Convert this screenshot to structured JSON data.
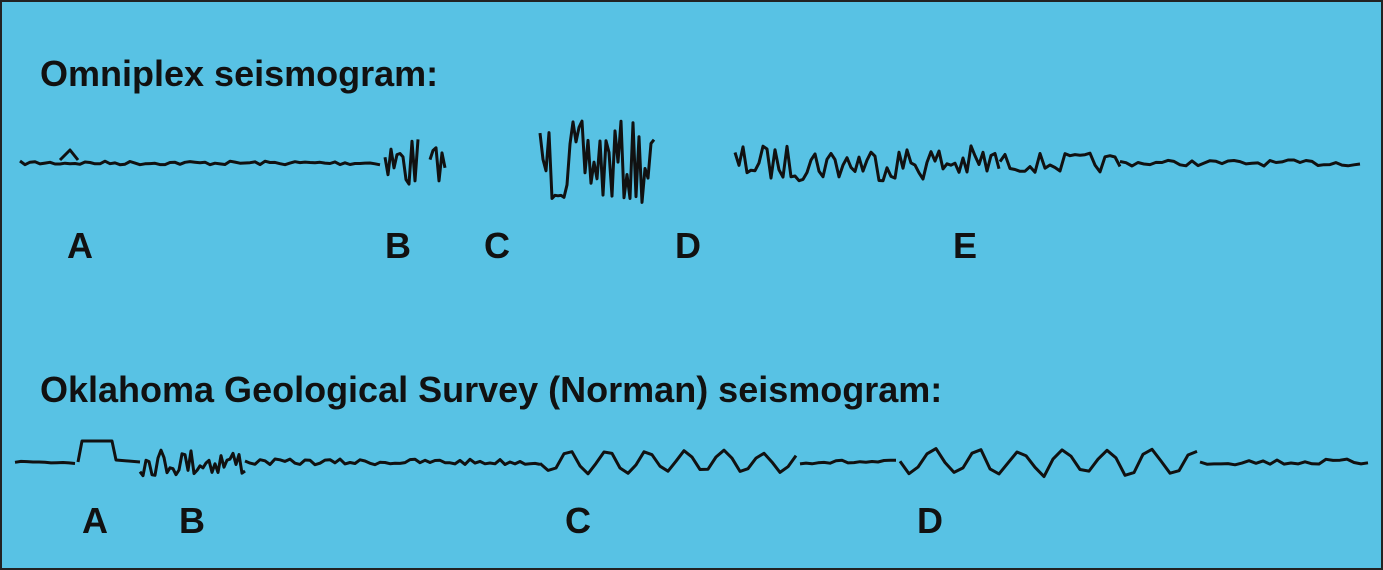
{
  "top": {
    "title": "Omniplex seismogram:",
    "labels": [
      "A",
      "B",
      "C",
      "D",
      "E"
    ]
  },
  "bottom": {
    "title": "Oklahoma Geological Survey (Norman) seismogram:",
    "labels": [
      "A",
      "B",
      "C",
      "D"
    ]
  }
}
